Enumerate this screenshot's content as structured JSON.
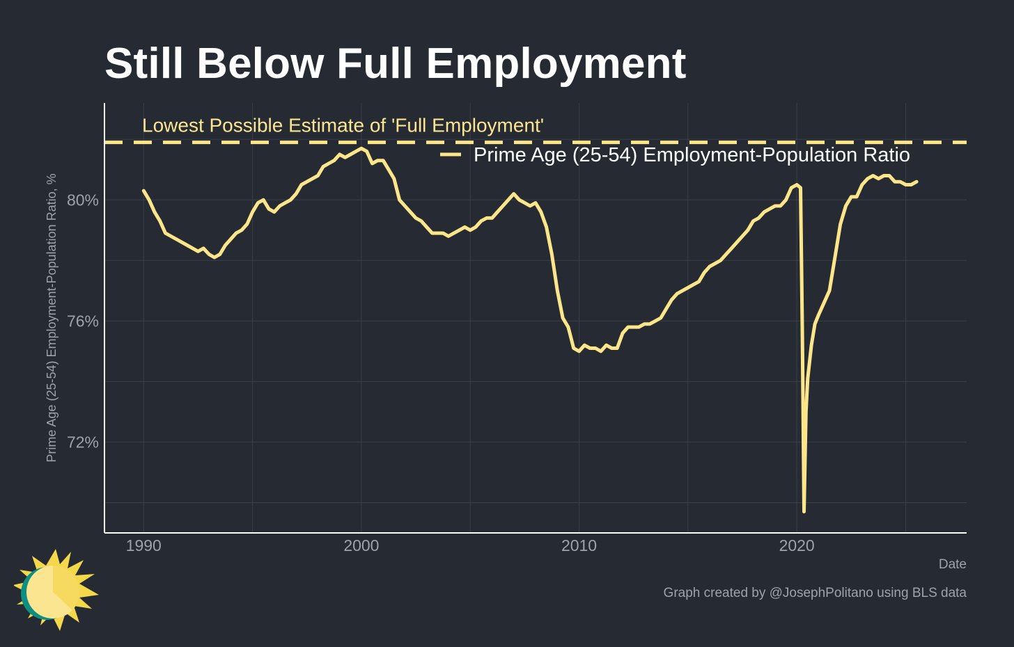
{
  "title": "Still Below Full Employment",
  "caption": "Graph created by @JosephPolitano using BLS data",
  "colors": {
    "background": "#252a33",
    "line": "#fde68a",
    "grid": "#3a3f48",
    "axis": "#ffffff",
    "tick_text": "#9ea2aa",
    "annotation": "#fbe591"
  },
  "chart_data": {
    "type": "line",
    "xlabel": "Date",
    "ylabel": "Prime Age (25-54) Employment-Population Ratio, %",
    "xlim": [
      1988.2,
      2027.8
    ],
    "ylim": [
      69.0,
      83.2
    ],
    "x_ticks": [
      1990,
      2000,
      2010,
      2020
    ],
    "x_tick_labels": [
      "1990",
      "2000",
      "2010",
      "2020"
    ],
    "y_ticks": [
      72,
      76,
      80
    ],
    "y_tick_labels": [
      "72%",
      "76%",
      "80%"
    ],
    "grid": true,
    "legend": {
      "position": "top-right",
      "entries": [
        "Prime Age (25-54) Employment-Population Ratio"
      ]
    },
    "reference_line": {
      "y": 81.9,
      "style": "dashed",
      "label": "Lowest Possible Estimate of 'Full Employment'"
    },
    "series": [
      {
        "name": "Prime Age (25-54) Employment-Population Ratio",
        "points": [
          [
            1990.0,
            80.3
          ],
          [
            1990.25,
            80.0
          ],
          [
            1990.5,
            79.6
          ],
          [
            1990.75,
            79.3
          ],
          [
            1991.0,
            78.9
          ],
          [
            1991.25,
            78.8
          ],
          [
            1991.5,
            78.7
          ],
          [
            1991.75,
            78.6
          ],
          [
            1992.0,
            78.5
          ],
          [
            1992.25,
            78.4
          ],
          [
            1992.5,
            78.3
          ],
          [
            1992.75,
            78.4
          ],
          [
            1993.0,
            78.2
          ],
          [
            1993.25,
            78.1
          ],
          [
            1993.5,
            78.2
          ],
          [
            1993.75,
            78.5
          ],
          [
            1994.0,
            78.7
          ],
          [
            1994.25,
            78.9
          ],
          [
            1994.5,
            79.0
          ],
          [
            1994.75,
            79.2
          ],
          [
            1995.0,
            79.6
          ],
          [
            1995.25,
            79.9
          ],
          [
            1995.5,
            80.0
          ],
          [
            1995.75,
            79.7
          ],
          [
            1996.0,
            79.6
          ],
          [
            1996.25,
            79.8
          ],
          [
            1996.5,
            79.9
          ],
          [
            1996.75,
            80.0
          ],
          [
            1997.0,
            80.2
          ],
          [
            1997.25,
            80.5
          ],
          [
            1997.5,
            80.6
          ],
          [
            1997.75,
            80.7
          ],
          [
            1998.0,
            80.8
          ],
          [
            1998.25,
            81.1
          ],
          [
            1998.5,
            81.2
          ],
          [
            1998.75,
            81.3
          ],
          [
            1999.0,
            81.5
          ],
          [
            1999.25,
            81.4
          ],
          [
            1999.5,
            81.5
          ],
          [
            1999.75,
            81.6
          ],
          [
            2000.0,
            81.7
          ],
          [
            2000.25,
            81.6
          ],
          [
            2000.5,
            81.2
          ],
          [
            2000.75,
            81.3
          ],
          [
            2001.0,
            81.3
          ],
          [
            2001.25,
            81.0
          ],
          [
            2001.5,
            80.7
          ],
          [
            2001.75,
            80.0
          ],
          [
            2002.0,
            79.8
          ],
          [
            2002.25,
            79.6
          ],
          [
            2002.5,
            79.4
          ],
          [
            2002.75,
            79.3
          ],
          [
            2003.0,
            79.1
          ],
          [
            2003.25,
            78.9
          ],
          [
            2003.5,
            78.9
          ],
          [
            2003.75,
            78.9
          ],
          [
            2004.0,
            78.8
          ],
          [
            2004.25,
            78.9
          ],
          [
            2004.5,
            79.0
          ],
          [
            2004.75,
            79.1
          ],
          [
            2005.0,
            79.0
          ],
          [
            2005.25,
            79.1
          ],
          [
            2005.5,
            79.3
          ],
          [
            2005.75,
            79.4
          ],
          [
            2006.0,
            79.4
          ],
          [
            2006.25,
            79.6
          ],
          [
            2006.5,
            79.8
          ],
          [
            2006.75,
            80.0
          ],
          [
            2007.0,
            80.2
          ],
          [
            2007.25,
            80.0
          ],
          [
            2007.5,
            79.9
          ],
          [
            2007.75,
            79.8
          ],
          [
            2008.0,
            79.9
          ],
          [
            2008.25,
            79.6
          ],
          [
            2008.5,
            79.1
          ],
          [
            2008.75,
            78.2
          ],
          [
            2009.0,
            77.0
          ],
          [
            2009.25,
            76.1
          ],
          [
            2009.5,
            75.8
          ],
          [
            2009.75,
            75.1
          ],
          [
            2010.0,
            75.0
          ],
          [
            2010.25,
            75.2
          ],
          [
            2010.5,
            75.1
          ],
          [
            2010.75,
            75.1
          ],
          [
            2011.0,
            75.0
          ],
          [
            2011.25,
            75.2
          ],
          [
            2011.5,
            75.1
          ],
          [
            2011.75,
            75.1
          ],
          [
            2012.0,
            75.6
          ],
          [
            2012.25,
            75.8
          ],
          [
            2012.5,
            75.8
          ],
          [
            2012.75,
            75.8
          ],
          [
            2013.0,
            75.9
          ],
          [
            2013.25,
            75.9
          ],
          [
            2013.5,
            76.0
          ],
          [
            2013.75,
            76.1
          ],
          [
            2014.0,
            76.4
          ],
          [
            2014.25,
            76.7
          ],
          [
            2014.5,
            76.9
          ],
          [
            2014.75,
            77.0
          ],
          [
            2015.0,
            77.1
          ],
          [
            2015.25,
            77.2
          ],
          [
            2015.5,
            77.3
          ],
          [
            2015.75,
            77.6
          ],
          [
            2016.0,
            77.8
          ],
          [
            2016.25,
            77.9
          ],
          [
            2016.5,
            78.0
          ],
          [
            2016.75,
            78.2
          ],
          [
            2017.0,
            78.4
          ],
          [
            2017.25,
            78.6
          ],
          [
            2017.5,
            78.8
          ],
          [
            2017.75,
            79.0
          ],
          [
            2018.0,
            79.3
          ],
          [
            2018.25,
            79.4
          ],
          [
            2018.5,
            79.6
          ],
          [
            2018.75,
            79.7
          ],
          [
            2019.0,
            79.8
          ],
          [
            2019.25,
            79.8
          ],
          [
            2019.5,
            80.0
          ],
          [
            2019.75,
            80.4
          ],
          [
            2020.0,
            80.5
          ],
          [
            2020.17,
            80.4
          ],
          [
            2020.25,
            75.8
          ],
          [
            2020.33,
            69.7
          ],
          [
            2020.42,
            73.0
          ],
          [
            2020.5,
            74.1
          ],
          [
            2020.67,
            75.2
          ],
          [
            2020.83,
            75.9
          ],
          [
            2021.0,
            76.2
          ],
          [
            2021.25,
            76.6
          ],
          [
            2021.5,
            77.0
          ],
          [
            2021.75,
            78.1
          ],
          [
            2022.0,
            79.2
          ],
          [
            2022.25,
            79.8
          ],
          [
            2022.5,
            80.1
          ],
          [
            2022.75,
            80.1
          ],
          [
            2023.0,
            80.5
          ],
          [
            2023.25,
            80.7
          ],
          [
            2023.5,
            80.8
          ],
          [
            2023.75,
            80.7
          ],
          [
            2024.0,
            80.8
          ],
          [
            2024.25,
            80.8
          ],
          [
            2024.5,
            80.6
          ],
          [
            2024.75,
            80.6
          ],
          [
            2025.0,
            80.5
          ],
          [
            2025.25,
            80.5
          ],
          [
            2025.5,
            80.6
          ]
        ]
      }
    ]
  }
}
